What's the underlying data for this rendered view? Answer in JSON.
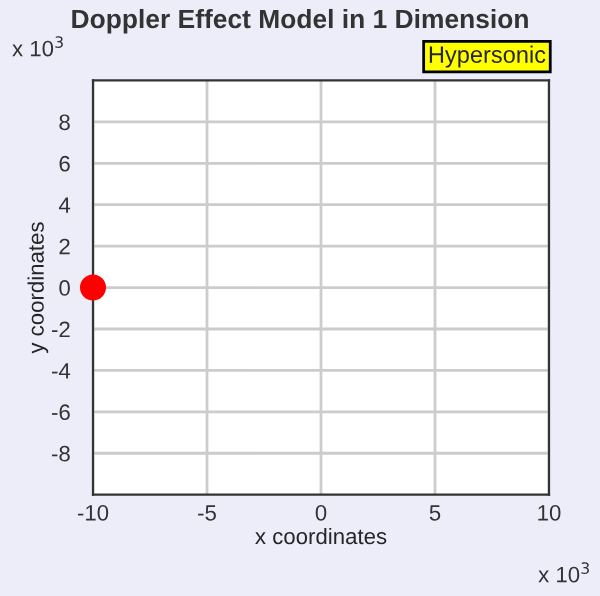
{
  "chart_data": {
    "type": "scatter",
    "title": "Doppler Effect Model in 1 Dimension",
    "xlabel": "x coordinates",
    "ylabel": "y coordinates",
    "annotations": [
      "Hypersonic",
      "x 10$^{3}$",
      "x 10$^{3}$"
    ],
    "x": [
      -10
    ],
    "series": [
      {
        "color": "#ff0000",
        "values": [
          0
        ]
      }
    ],
    "marker": "circle",
    "grid": true,
    "xlim": [
      -10,
      10
    ],
    "xticks": [
      -10,
      -5,
      0,
      5,
      10
    ],
    "ylim": [
      -10,
      10
    ],
    "yticks": [
      -8,
      -6,
      -4,
      -2,
      0,
      2,
      4,
      6,
      8
    ]
  }
}
